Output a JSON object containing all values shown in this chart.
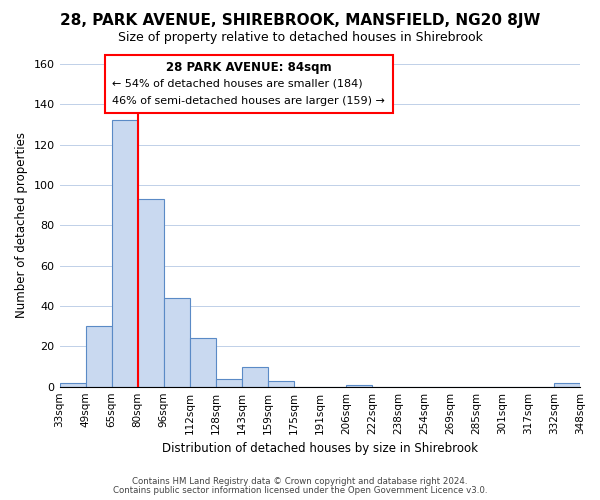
{
  "title": "28, PARK AVENUE, SHIREBROOK, MANSFIELD, NG20 8JW",
  "subtitle": "Size of property relative to detached houses in Shirebrook",
  "xlabel": "Distribution of detached houses by size in Shirebrook",
  "ylabel": "Number of detached properties",
  "tick_labels": [
    "33sqm",
    "49sqm",
    "65sqm",
    "80sqm",
    "96sqm",
    "112sqm",
    "128sqm",
    "143sqm",
    "159sqm",
    "175sqm",
    "191sqm",
    "206sqm",
    "222sqm",
    "238sqm",
    "254sqm",
    "269sqm",
    "285sqm",
    "301sqm",
    "317sqm",
    "332sqm",
    "348sqm"
  ],
  "bar_values": [
    2,
    30,
    132,
    93,
    44,
    24,
    4,
    10,
    3,
    0,
    0,
    1,
    0,
    0,
    0,
    0,
    0,
    0,
    0,
    2
  ],
  "bar_color": "#c9d9f0",
  "bar_edge_color": "#5a8ac6",
  "red_line_x": 3,
  "annotation_title": "28 PARK AVENUE: 84sqm",
  "annotation_line1": "← 54% of detached houses are smaller (184)",
  "annotation_line2": "46% of semi-detached houses are larger (159) →",
  "ylim": [
    0,
    160
  ],
  "yticks": [
    0,
    20,
    40,
    60,
    80,
    100,
    120,
    140,
    160
  ],
  "footer1": "Contains HM Land Registry data © Crown copyright and database right 2024.",
  "footer2": "Contains public sector information licensed under the Open Government Licence v3.0."
}
